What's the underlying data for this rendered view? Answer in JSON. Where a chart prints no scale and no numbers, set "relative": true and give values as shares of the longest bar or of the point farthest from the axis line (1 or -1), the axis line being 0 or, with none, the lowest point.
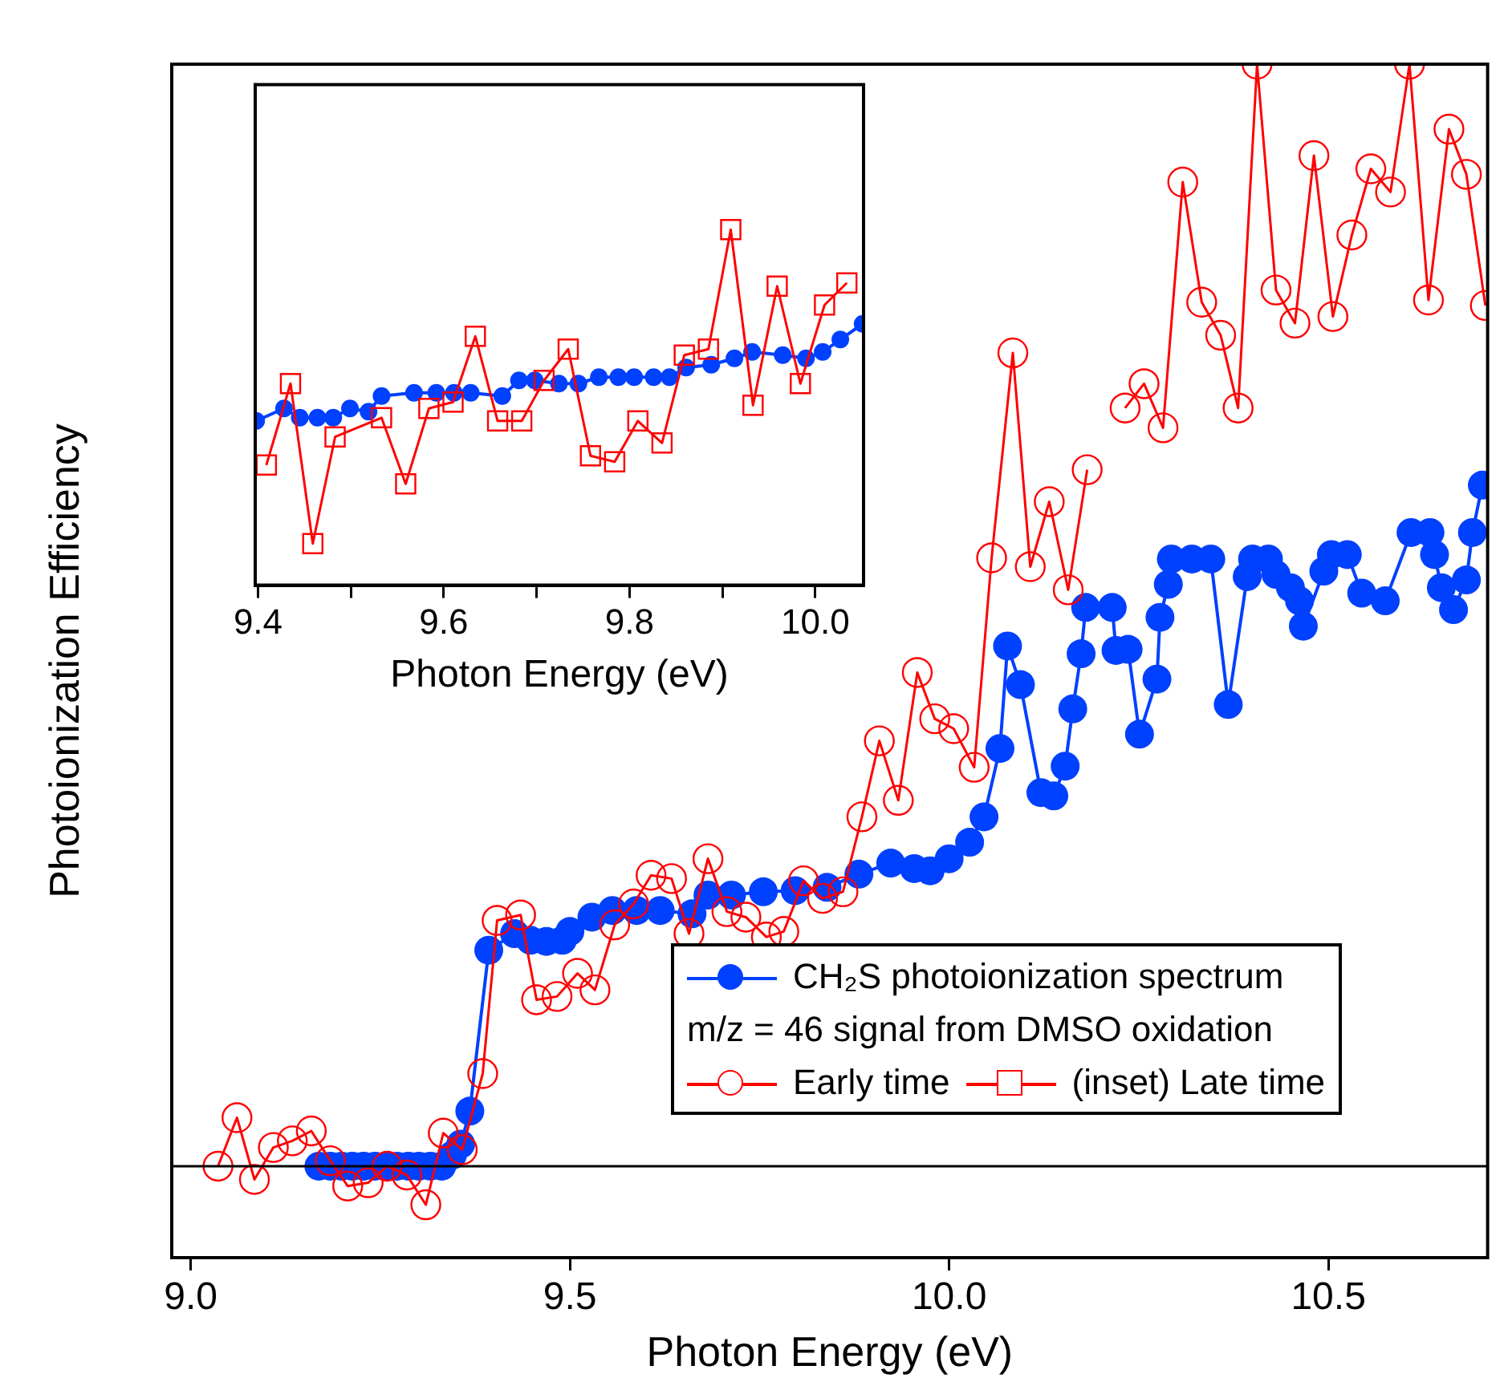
{
  "chart_data": [
    {
      "type": "line",
      "xlabel": "Photon Energy (eV)",
      "ylabel": "Photoionization Efficiency",
      "relative": true,
      "xlim": [
        8.975,
        10.71
      ],
      "xticks": [
        {
          "value": 9,
          "label": "9.0"
        },
        9.5,
        {
          "value": 10,
          "label": "10.0"
        },
        10.5
      ],
      "legend": "bottom right",
      "legend_title": "m/z = 46 signal from DMSO oxidation",
      "grid": false,
      "series": [
        {
          "name": "CH₂S photoionization spectrum",
          "color": "#0040ff",
          "marker": "circle",
          "x": [
            9.169,
            9.184,
            9.199,
            9.213,
            9.228,
            9.243,
            9.257,
            9.272,
            9.287,
            9.301,
            9.316,
            9.331,
            9.345,
            9.356,
            9.368,
            9.393,
            9.427,
            9.448,
            9.469,
            9.49,
            9.5,
            9.529,
            9.556,
            9.588,
            9.619,
            9.661,
            9.682,
            9.713,
            9.755,
            9.797,
            9.839,
            9.881,
            9.923,
            9.954,
            9.975,
            10.0,
            10.027,
            10.046,
            10.067,
            10.077,
            10.094,
            10.121,
            10.138,
            10.153,
            10.163,
            10.174,
            10.18,
            10.215,
            10.22,
            10.236,
            10.251,
            10.274,
            10.278,
            10.289,
            10.293,
            10.32,
            10.345,
            10.368,
            10.393,
            10.4,
            10.421,
            10.431,
            10.45,
            10.462,
            10.467,
            10.494,
            10.504,
            10.525,
            10.544,
            10.575,
            10.609,
            10.634,
            10.64,
            10.649,
            10.665,
            10.682,
            10.69,
            10.703
          ],
          "values": [
            0,
            0,
            0,
            0,
            0,
            0,
            0,
            0,
            0,
            0,
            0,
            0,
            0.01,
            0.02,
            0.05,
            0.196,
            0.211,
            0.205,
            0.204,
            0.205,
            0.213,
            0.226,
            0.232,
            0.232,
            0.232,
            0.229,
            0.246,
            0.246,
            0.249,
            0.25,
            0.253,
            0.265,
            0.275,
            0.27,
            0.268,
            0.279,
            0.294,
            0.317,
            0.379,
            0.472,
            0.437,
            0.339,
            0.336,
            0.363,
            0.415,
            0.465,
            0.507,
            0.507,
            0.468,
            0.469,
            0.392,
            0.442,
            0.498,
            0.528,
            0.551,
            0.551,
            0.551,
            0.419,
            0.535,
            0.551,
            0.551,
            0.537,
            0.525,
            0.513,
            0.49,
            0.54,
            0.555,
            0.555,
            0.52,
            0.513,
            0.575,
            0.575,
            0.555,
            0.525,
            0.505,
            0.532,
            0.575,
            0.618
          ]
        },
        {
          "name": "Early time",
          "color": "#ff0000",
          "marker": "circle",
          "x": [
            9.036,
            9.061,
            9.084,
            9.109,
            9.134,
            9.159,
            9.184,
            9.207,
            9.234,
            9.259,
            9.285,
            9.31,
            9.333,
            9.358,
            9.385,
            9.404,
            9.435,
            9.456,
            9.483,
            9.51,
            9.533,
            9.559,
            9.584,
            9.607,
            9.634,
            9.657,
            9.682,
            9.707,
            9.732,
            9.759,
            9.782,
            9.808,
            9.833,
            9.86,
            9.885,
            9.908,
            9.933,
            9.958,
            9.981,
            10.006,
            10.033,
            10.056,
            10.084,
            10.107,
            10.132,
            10.157,
            10.182,
            10.207,
            10.232,
            10.257,
            10.282,
            10.308,
            10.333,
            10.358,
            10.381,
            10.406,
            10.431,
            10.456,
            10.481,
            10.506,
            10.531,
            10.556,
            10.582,
            10.607,
            10.632,
            10.659,
            10.682,
            10.707
          ],
          "values": [
            0,
            0.044,
            -0.012,
            0.017,
            0.023,
            0.032,
            0.005,
            -0.018,
            -0.015,
            0,
            -0.008,
            -0.035,
            0.03,
            0.015,
            0.084,
            0.223,
            0.228,
            0.151,
            0.154,
            0.175,
            0.16,
            0.219,
            0.238,
            0.264,
            0.261,
            0.211,
            0.279,
            0.231,
            0.226,
            0.208,
            0.213,
            0.259,
            0.243,
            0.249,
            0.317,
            0.386,
            0.332,
            0.448,
            0.406,
            0.397,
            0.362,
            0.552,
            0.738,
            0.544,
            0.603,
            0.523,
            0.632,
            null,
            0.688,
            0.71,
            0.67,
            0.893,
            0.784,
            0.754,
            0.688,
            1,
            0.795,
            0.765,
            0.917,
            0.771,
            0.845,
            0.905,
            0.884,
            1,
            0.786,
            0.941,
            0.9,
            0.781
          ]
        }
      ]
    },
    {
      "type": "line",
      "xlabel": "Photon Energy (eV)",
      "relative": true,
      "xlim": [
        9.397,
        10.052
      ],
      "xticks": [
        9.4,
        {
          "value": 9.5,
          "label": null
        },
        9.6,
        {
          "value": 9.7,
          "label": null
        },
        9.8,
        {
          "value": 9.9,
          "label": null
        },
        {
          "value": 10,
          "label": "10.0"
        }
      ],
      "legend": "bottom right",
      "grid": false,
      "series": [
        {
          "color": "#0040ff",
          "marker": "circle",
          "x": [
            9.398,
            9.428,
            9.445,
            9.464,
            9.481,
            9.499,
            9.519,
            9.533,
            9.568,
            9.592,
            9.611,
            9.629,
            9.663,
            9.681,
            9.698,
            9.724,
            9.745,
            9.767,
            9.788,
            9.805,
            9.826,
            9.843,
            9.861,
            9.888,
            9.913,
            9.932,
            9.965,
            9.99,
            10.008,
            10.027,
            10.051
          ],
          "values": [
            0.462,
            0.497,
            0.471,
            0.471,
            0.471,
            0.497,
            0.488,
            0.532,
            0.541,
            0.541,
            0.541,
            0.541,
            0.532,
            0.576,
            0.576,
            0.567,
            0.567,
            0.585,
            0.585,
            0.585,
            0.585,
            0.585,
            0.612,
            0.62,
            0.638,
            0.656,
            0.647,
            0.638,
            0.656,
            0.691,
            0.735
          ]
        },
        {
          "name": "(inset) Late time",
          "color": "#ff0000",
          "marker": "square",
          "x": [
            9.409,
            9.435,
            9.459,
            9.483,
            9.533,
            9.559,
            9.584,
            9.61,
            9.634,
            9.658,
            9.684,
            9.708,
            9.734,
            9.758,
            9.784,
            9.809,
            9.835,
            9.859,
            9.885,
            9.909,
            9.933,
            9.959,
            9.984,
            10.01,
            10.034
          ],
          "values": [
            0.338,
            0.567,
            0.117,
            0.417,
            0.471,
            0.285,
            0.497,
            0.515,
            0.7,
            0.462,
            0.462,
            0.576,
            0.664,
            0.364,
            0.347,
            0.462,
            0.4,
            0.647,
            0.664,
            1,
            0.506,
            0.841,
            0.567,
            0.788,
            0.85
          ]
        }
      ]
    }
  ]
}
